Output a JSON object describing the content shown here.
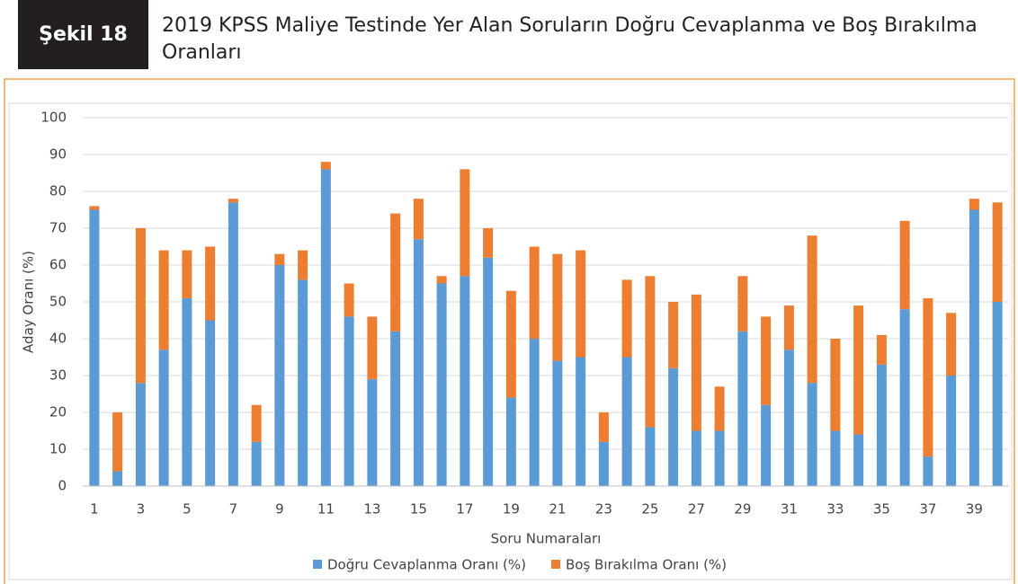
{
  "figure_label": "Şekil 18",
  "chart_data": {
    "type": "stacked_bar",
    "title": "2019 KPSS Maliye Testinde Yer Alan Soruların Doğru Cevaplanma ve Boş Bırakılma Oranları",
    "x_label": "Soru Numaraları",
    "y_label": "Aday Oranı (%)",
    "categories": [
      "1",
      null,
      "3",
      null,
      "5",
      null,
      "7",
      null,
      "9",
      null,
      "11",
      null,
      "13",
      null,
      "15",
      null,
      "17",
      null,
      "19",
      null,
      "21",
      null,
      "23",
      null,
      "25",
      null,
      "27",
      null,
      "29",
      null,
      "31",
      null,
      "33",
      null,
      "35",
      null,
      "37",
      null,
      "39",
      null
    ],
    "series": [
      {
        "name": "Doğru Cevaplanma Oranı (%)",
        "color": "#5b9bd5",
        "values": [
          75,
          4,
          28,
          37,
          51,
          45,
          77,
          12,
          60,
          56,
          86,
          46,
          29,
          42,
          67,
          55,
          57,
          62,
          24,
          40,
          34,
          35,
          12,
          35,
          16,
          32,
          15,
          15,
          42,
          22,
          37,
          28,
          15,
          14,
          33,
          48,
          8,
          30,
          75,
          50
        ]
      },
      {
        "name": "Boş Bırakılma Oranı (%)",
        "color": "#ed7d31",
        "values": [
          1,
          16,
          42,
          27,
          13,
          20,
          1,
          10,
          3,
          8,
          2,
          9,
          17,
          32,
          11,
          2,
          29,
          8,
          29,
          25,
          29,
          29,
          8,
          21,
          41,
          18,
          37,
          12,
          15,
          24,
          12,
          40,
          25,
          35,
          8,
          24,
          43,
          17,
          3,
          27
        ]
      }
    ],
    "ylim": [
      0,
      100
    ],
    "yticks": [
      0,
      10,
      20,
      30,
      40,
      50,
      60,
      70,
      80,
      90,
      100
    ],
    "grid": true,
    "legend": "bottom"
  }
}
